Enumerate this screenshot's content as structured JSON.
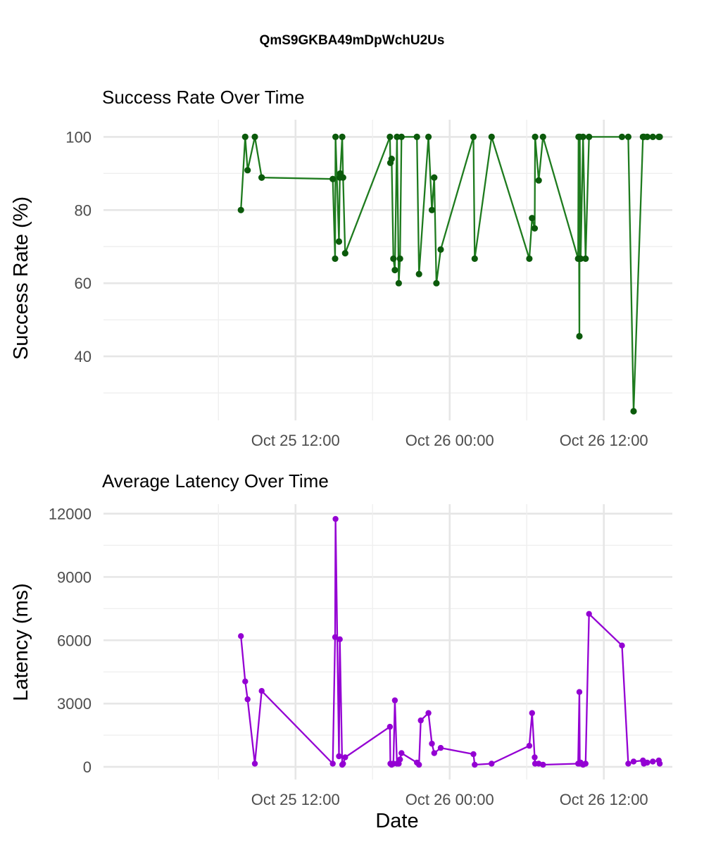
{
  "figure": {
    "title": "QmS9GKBA49mDpWchU2Us",
    "x_axis_label": "Date"
  },
  "chart_data": [
    {
      "type": "line",
      "title": "Success Rate Over Time",
      "xlabel": "",
      "ylabel": "Success Rate (%)",
      "x_type": "datetime",
      "x_range": [
        "2024-10-24 21:03",
        "2024-10-26 17:20"
      ],
      "x_ticks": [
        "2024-10-25 12:00",
        "2024-10-26 00:00",
        "2024-10-26 12:00"
      ],
      "x_tick_labels": [
        "Oct 25 12:00",
        "Oct 26 00:00",
        "Oct 26 12:00"
      ],
      "ylim": [
        22.5,
        104.7
      ],
      "y_ticks": [
        40,
        60,
        80,
        100
      ],
      "y_tick_labels": [
        "40",
        "60",
        "80",
        "100"
      ],
      "grid": true,
      "colors": {
        "line": "#1e7b1e",
        "point": "#0b5a0b"
      },
      "series": [
        {
          "x": [
            "2024-10-25 07:45",
            "2024-10-25 08:05",
            "2024-10-25 08:16",
            "2024-10-25 08:50",
            "2024-10-25 09:22",
            "2024-10-25 09:22",
            "2024-10-25 14:54",
            "2024-10-25 15:05",
            "2024-10-25 15:07",
            "2024-10-25 15:23",
            "2024-10-25 15:27",
            "2024-10-25 15:29",
            "2024-10-25 15:38",
            "2024-10-25 15:42",
            "2024-10-25 15:52",
            "2024-10-25 19:21",
            "2024-10-25 19:23",
            "2024-10-25 19:29",
            "2024-10-25 19:37",
            "2024-10-25 19:44",
            "2024-10-25 19:54",
            "2024-10-25 20:02",
            "2024-10-25 20:08",
            "2024-10-25 20:15",
            "2024-10-25 21:27",
            "2024-10-25 21:37",
            "2024-10-25 22:21",
            "2024-10-25 22:37",
            "2024-10-25 22:48",
            "2024-10-25 22:58",
            "2024-10-25 23:18",
            "2024-10-26 01:51",
            "2024-10-26 01:57",
            "2024-10-26 03:16",
            "2024-10-26 06:12",
            "2024-10-26 06:25",
            "2024-10-26 06:37",
            "2024-10-26 06:39",
            "2024-10-26 06:56",
            "2024-10-26 07:16",
            "2024-10-26 10:00",
            "2024-10-26 10:02",
            "2024-10-26 10:06",
            "2024-10-26 10:08",
            "2024-10-26 10:12",
            "2024-10-26 10:23",
            "2024-10-26 10:35",
            "2024-10-26 10:51",
            "2024-10-26 13:25",
            "2024-10-26 13:54",
            "2024-10-26 14:19",
            "2024-10-26 15:03",
            "2024-10-26 15:07",
            "2024-10-26 15:23",
            "2024-10-26 15:49",
            "2024-10-26 16:17",
            "2024-10-26 16:21"
          ],
          "y": [
            80,
            100,
            90.9,
            100,
            88.9,
            88.9,
            88.5,
            66.7,
            100,
            71.4,
            88.9,
            90,
            100,
            88.9,
            68.2,
            100,
            92.9,
            94,
            66.7,
            63.6,
            100,
            60,
            66.7,
            100,
            100,
            62.5,
            100,
            80,
            88.9,
            60,
            69.2,
            100,
            66.7,
            100,
            66.7,
            77.8,
            75,
            100,
            88.1,
            100,
            66.7,
            100,
            45.5,
            100,
            66.7,
            100,
            66.7,
            100,
            100,
            100,
            25,
            100,
            100,
            100,
            100,
            100,
            100
          ]
        }
      ]
    },
    {
      "type": "line",
      "title": "Average Latency Over Time",
      "xlabel": "Date",
      "ylabel": "Latency (ms)",
      "x_type": "datetime",
      "x_range": [
        "2024-10-24 21:03",
        "2024-10-26 17:20"
      ],
      "x_ticks": [
        "2024-10-25 12:00",
        "2024-10-26 00:00",
        "2024-10-26 12:00"
      ],
      "x_tick_labels": [
        "Oct 25 12:00",
        "Oct 26 00:00",
        "Oct 26 12:00"
      ],
      "ylim": [
        -600,
        12450
      ],
      "y_ticks": [
        0,
        3000,
        6000,
        9000,
        12000
      ],
      "y_tick_labels": [
        "0",
        "3000",
        "6000",
        "9000",
        "12000"
      ],
      "grid": true,
      "colors": {
        "line": "#9400d3",
        "point": "#9400d3"
      },
      "series": [
        {
          "x": [
            "2024-10-25 07:45",
            "2024-10-25 08:05",
            "2024-10-25 08:16",
            "2024-10-25 08:50",
            "2024-10-25 09:22",
            "2024-10-25 14:54",
            "2024-10-25 15:05",
            "2024-10-25 15:07",
            "2024-10-25 15:23",
            "2024-10-25 15:27",
            "2024-10-25 15:38",
            "2024-10-25 15:42",
            "2024-10-25 15:52",
            "2024-10-25 19:21",
            "2024-10-25 19:23",
            "2024-10-25 19:29",
            "2024-10-25 19:37",
            "2024-10-25 19:44",
            "2024-10-25 19:54",
            "2024-10-25 20:02",
            "2024-10-25 20:08",
            "2024-10-25 20:15",
            "2024-10-25 21:27",
            "2024-10-25 21:37",
            "2024-10-25 21:45",
            "2024-10-25 22:21",
            "2024-10-25 22:37",
            "2024-10-25 22:48",
            "2024-10-25 23:18",
            "2024-10-26 01:51",
            "2024-10-26 01:57",
            "2024-10-26 03:16",
            "2024-10-26 06:12",
            "2024-10-26 06:25",
            "2024-10-26 06:37",
            "2024-10-26 06:39",
            "2024-10-26 06:56",
            "2024-10-26 07:16",
            "2024-10-26 10:00",
            "2024-10-26 10:06",
            "2024-10-26 10:08",
            "2024-10-26 10:12",
            "2024-10-26 10:23",
            "2024-10-26 10:35",
            "2024-10-26 10:51",
            "2024-10-26 13:25",
            "2024-10-26 13:54",
            "2024-10-26 14:19",
            "2024-10-26 15:03",
            "2024-10-26 15:07",
            "2024-10-26 15:23",
            "2024-10-26 15:49",
            "2024-10-26 16:17",
            "2024-10-26 16:21"
          ],
          "y": [
            6200,
            4050,
            3200,
            150,
            3600,
            150,
            6150,
            11750,
            500,
            6050,
            100,
            150,
            450,
            1900,
            150,
            100,
            150,
            3150,
            150,
            150,
            350,
            650,
            200,
            100,
            2200,
            2550,
            1100,
            650,
            900,
            600,
            100,
            150,
            1000,
            2550,
            450,
            150,
            150,
            100,
            150,
            3550,
            150,
            200,
            100,
            150,
            7250,
            5750,
            150,
            250,
            300,
            150,
            200,
            250,
            300,
            150
          ]
        }
      ]
    }
  ]
}
